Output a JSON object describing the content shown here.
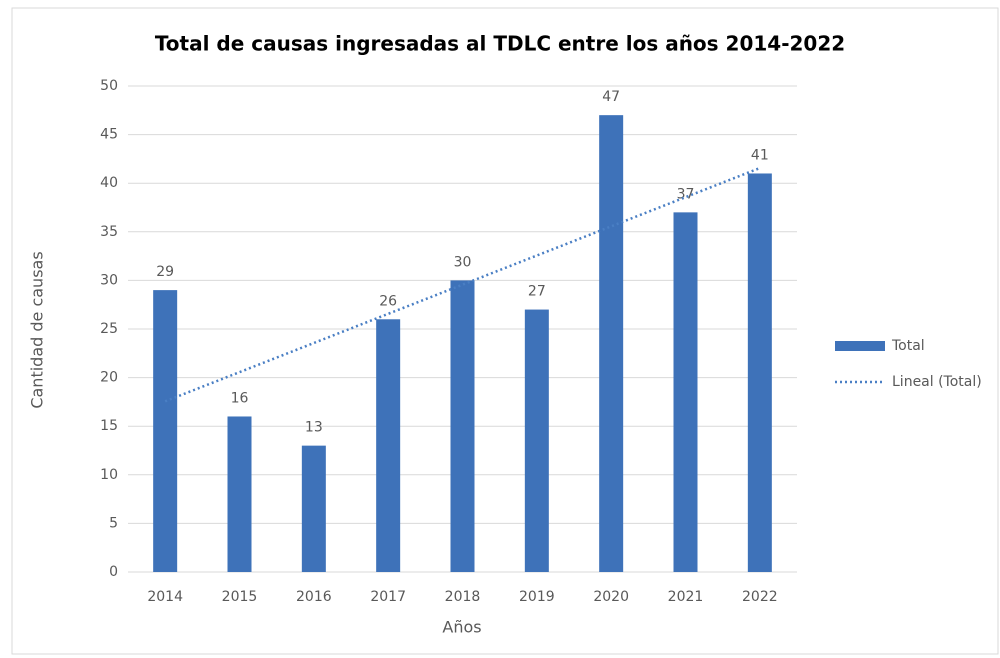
{
  "chart_data": {
    "type": "bar",
    "title": "Total de causas ingresadas al TDLC entre los años 2014-2022",
    "x_label": "Años",
    "y_label": "Cantidad de causas",
    "categories": [
      "2014",
      "2015",
      "2016",
      "2017",
      "2018",
      "2019",
      "2020",
      "2021",
      "2022"
    ],
    "series": [
      {
        "name": "Total",
        "color": "#3e72b9",
        "values": [
          29,
          16,
          13,
          26,
          30,
          27,
          47,
          37,
          41
        ]
      }
    ],
    "trendline": {
      "name": "Lineal (Total)",
      "color": "#4a7fc4",
      "values": [
        17.56,
        41.56
      ]
    },
    "ylim": [
      0,
      50
    ],
    "yticks": [
      0,
      5,
      10,
      15,
      20,
      25,
      30,
      35,
      40,
      45,
      50
    ],
    "grid": true,
    "legend": "right",
    "data_labels": true
  }
}
